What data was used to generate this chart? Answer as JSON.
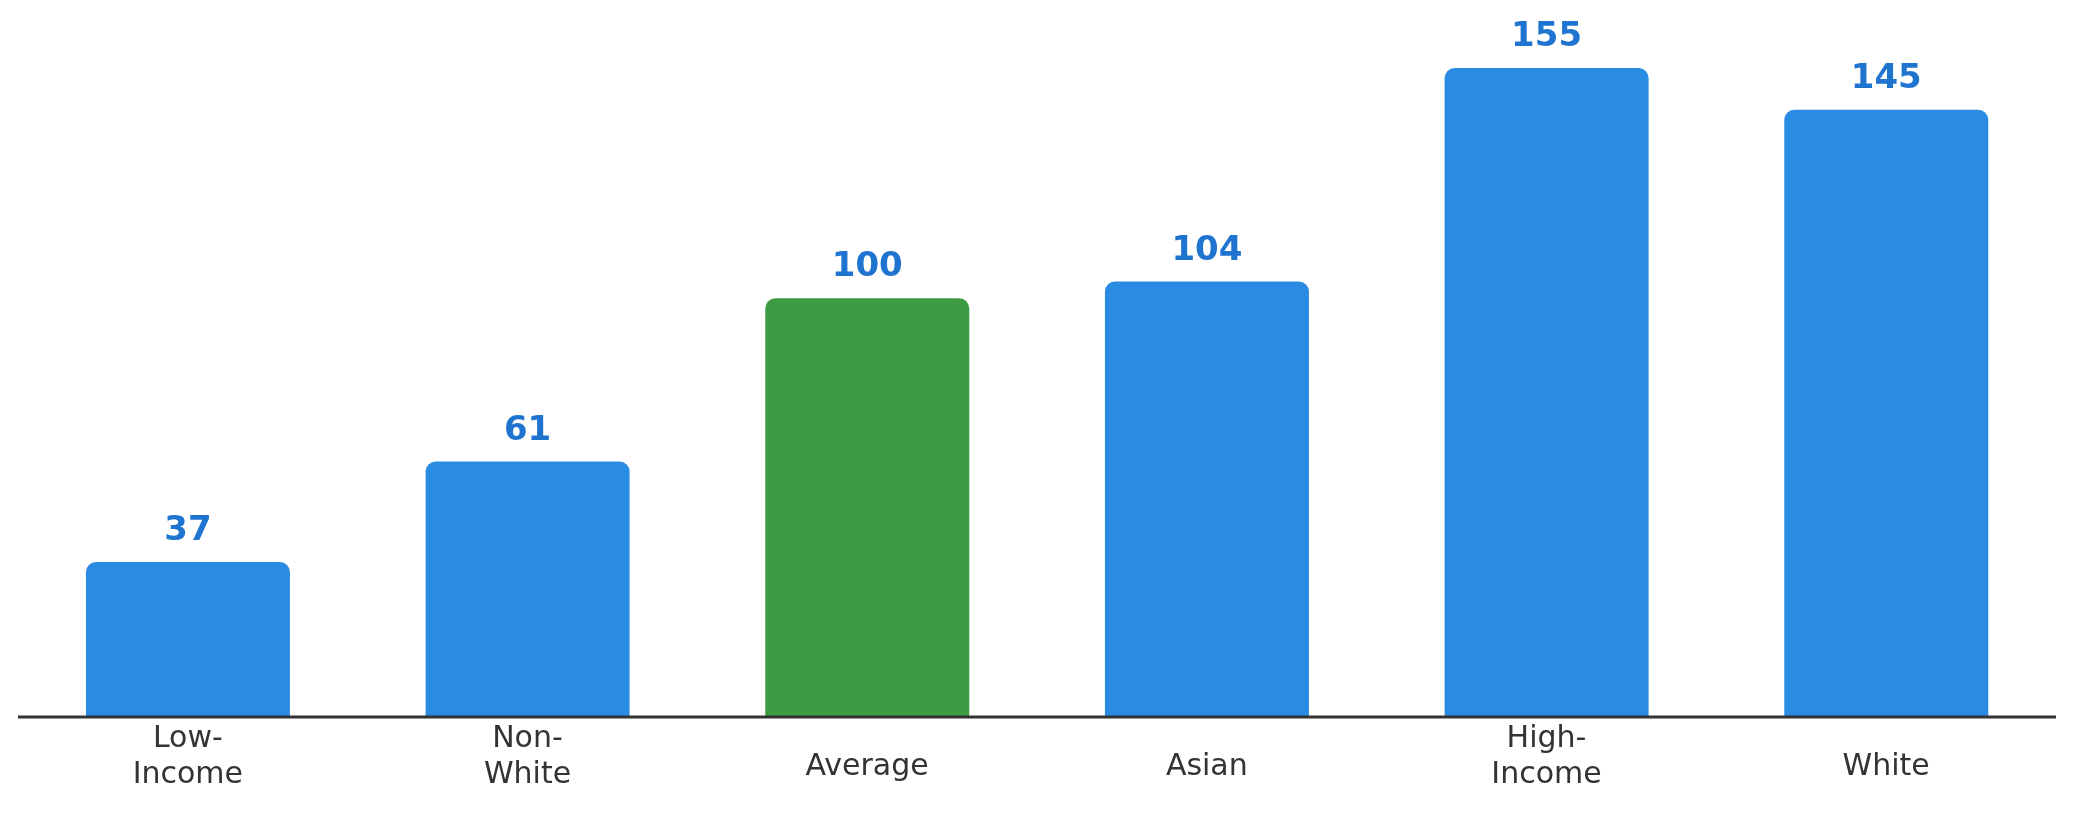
{
  "chart_data": {
    "type": "bar",
    "categories": [
      "Low-Income",
      "Non-White",
      "Average",
      "Asian",
      "High-Income",
      "White"
    ],
    "values": [
      37,
      61,
      100,
      104,
      155,
      145
    ],
    "colors": [
      "#2a8be3",
      "#2a8be3",
      "#3d9b43",
      "#2a8be3",
      "#2a8be3",
      "#2a8be3"
    ],
    "data_labels": true
  }
}
